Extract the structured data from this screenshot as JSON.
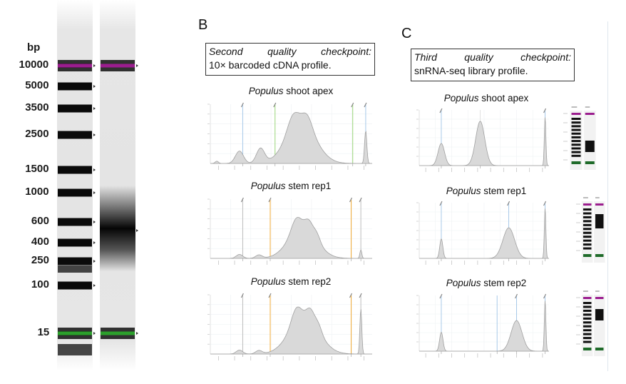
{
  "panel_b": {
    "letter": "B",
    "checkpoint": {
      "title_words": [
        "Second",
        "quality",
        "checkpoint:"
      ],
      "subtitle": "10× barcoded cDNA profile."
    },
    "traces": [
      {
        "species": "Populus",
        "sample": "shoot apex"
      },
      {
        "species": "Populus",
        "sample": "stem rep1"
      },
      {
        "species": "Populus",
        "sample": "stem rep2"
      }
    ]
  },
  "panel_c": {
    "letter": "C",
    "checkpoint": {
      "title_words": [
        "Third",
        "quality",
        "checkpoint:"
      ],
      "subtitle": "snRNA-seq library profile."
    },
    "traces": [
      {
        "species": "Populus",
        "sample": "shoot apex"
      },
      {
        "species": "Populus",
        "sample": "stem rep1"
      },
      {
        "species": "Populus",
        "sample": "stem rep2"
      }
    ]
  },
  "ladder": {
    "unit": "bp",
    "markers": [
      "10000",
      "5000",
      "3500",
      "2500",
      "1500",
      "1000",
      "600",
      "400",
      "250",
      "100",
      "15"
    ],
    "upper_marker_color": "#9b1d8e",
    "lower_marker_color": "#2ca02c"
  },
  "colors": {
    "trace_fill": "#d9d9d9",
    "trace_line": "#a0a0a0",
    "orange_marker": "#f5a623",
    "green_marker": "#8fd16a",
    "blue_marker": "#9dc3e6"
  }
}
